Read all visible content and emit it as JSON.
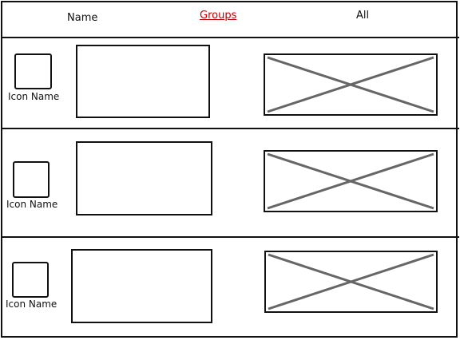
{
  "tabs": [
    {
      "label": "Name",
      "active": false
    },
    {
      "label": "Groups",
      "active": true
    },
    {
      "label": "All",
      "active": false
    }
  ],
  "rows": [
    {
      "icon_label": "Icon Name",
      "icon": "placeholder-icon",
      "image": "image-placeholder-icon"
    },
    {
      "icon_label": "Icon Name",
      "icon": "placeholder-icon",
      "image": "image-placeholder-icon"
    },
    {
      "icon_label": "Icon Name",
      "icon": "placeholder-icon",
      "image": "image-placeholder-icon"
    }
  ],
  "colors": {
    "active_tab": "#c00000",
    "stroke": "#111111",
    "placeholder_cross": "#666666"
  }
}
